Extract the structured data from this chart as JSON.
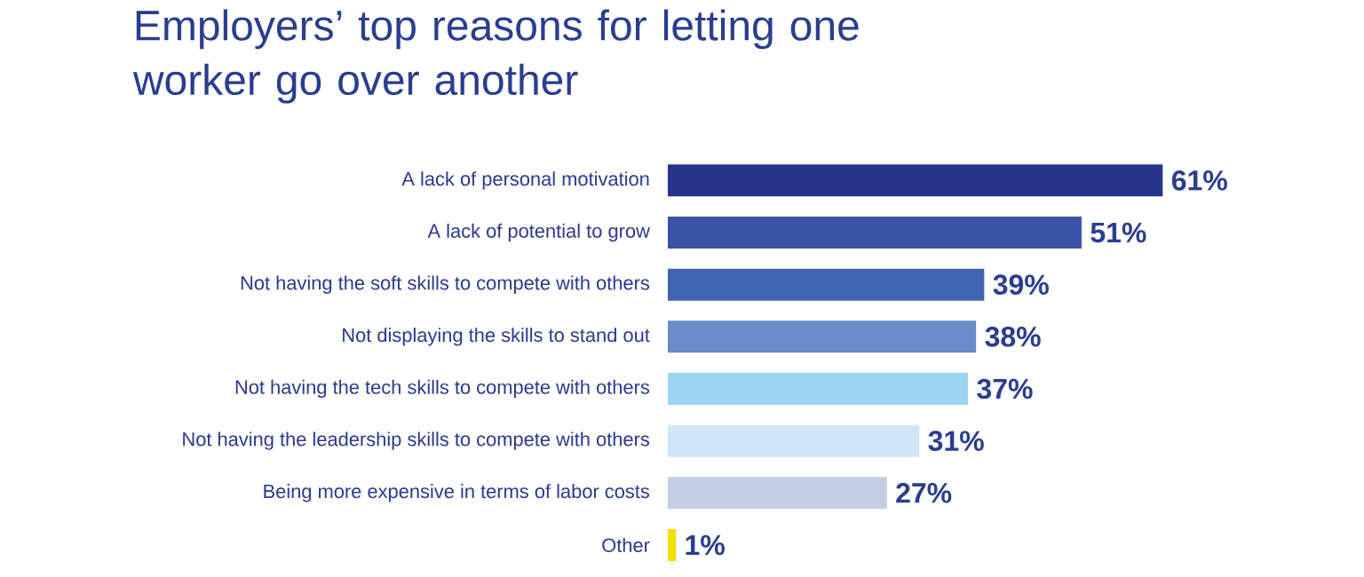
{
  "chart_data": {
    "type": "bar",
    "orientation": "horizontal",
    "title": "Employers’ top reasons for letting one worker go over another",
    "categories": [
      "A lack of personal motivation",
      "A lack of potential to grow",
      "Not having the soft skills to compete with others",
      "Not displaying the skills to stand out",
      "Not having the tech skills to compete with others",
      "Not having the leadership skills to compete with others",
      "Being more expensive in terms of labor costs",
      "Other"
    ],
    "values": [
      61,
      51,
      39,
      38,
      37,
      31,
      27,
      1
    ],
    "value_labels": [
      "61%",
      "51%",
      "39%",
      "38%",
      "37%",
      "31%",
      "27%",
      "1%"
    ],
    "colors": [
      "#27348b",
      "#3a53a4",
      "#4064b0",
      "#6a8cc8",
      "#9dd4f3",
      "#cfe6f8",
      "#c5cfe3",
      "#f2e000"
    ]
  }
}
